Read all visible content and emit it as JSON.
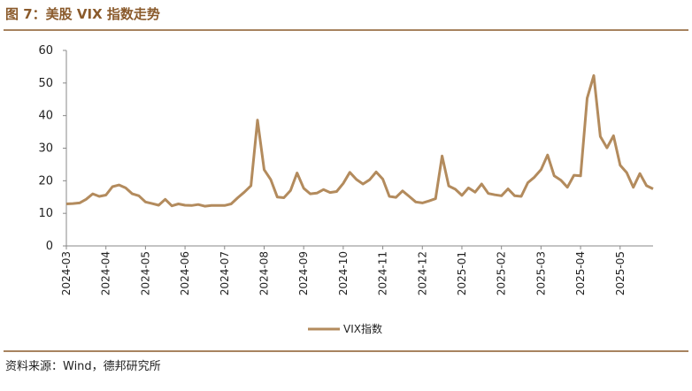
{
  "title": "图 7：美股 VIX 指数走势",
  "source": "资料来源：Wind，德邦研究所",
  "chart_data": {
    "type": "line",
    "categories": [
      "2024-03",
      null,
      null,
      null,
      null,
      null,
      "2024-04",
      null,
      null,
      null,
      null,
      null,
      "2024-05",
      null,
      null,
      null,
      null,
      null,
      "2024-06",
      null,
      null,
      null,
      null,
      null,
      "2024-07",
      null,
      null,
      null,
      null,
      null,
      "2024-08",
      null,
      null,
      null,
      null,
      null,
      "2024-09",
      null,
      null,
      null,
      null,
      null,
      "2024-10",
      null,
      null,
      null,
      null,
      null,
      "2024-11",
      null,
      null,
      null,
      null,
      null,
      "2024-12",
      null,
      null,
      null,
      null,
      null,
      "2025-01",
      null,
      null,
      null,
      null,
      null,
      "2025-02",
      null,
      null,
      null,
      null,
      null,
      "2025-03",
      null,
      null,
      null,
      null,
      null,
      "2025-04",
      null,
      null,
      null,
      null,
      null,
      "2025-05",
      null,
      null,
      null,
      null,
      null
    ],
    "series": [
      {
        "name": "VIX指数",
        "color": "#b38b5d",
        "values": [
          12.9,
          13.0,
          13.2,
          14.3,
          16.0,
          15.2,
          15.6,
          18.2,
          18.7,
          17.8,
          16.0,
          15.4,
          13.5,
          13.0,
          12.5,
          14.3,
          12.3,
          12.9,
          12.5,
          12.4,
          12.7,
          12.2,
          12.4,
          12.4,
          12.4,
          12.9,
          14.8,
          16.5,
          18.5,
          38.6,
          23.4,
          20.4,
          15.0,
          14.8,
          17.0,
          22.4,
          17.7,
          16.0,
          16.2,
          17.3,
          16.4,
          16.7,
          19.2,
          22.6,
          20.4,
          19.0,
          20.3,
          22.7,
          20.5,
          15.2,
          14.9,
          16.9,
          15.2,
          13.5,
          13.2,
          13.8,
          14.5,
          27.6,
          18.4,
          17.4,
          15.5,
          17.8,
          16.5,
          19.0,
          16.1,
          15.7,
          15.4,
          17.5,
          15.4,
          15.2,
          19.4,
          21.1,
          23.4,
          27.9,
          21.5,
          20.2,
          18.0,
          21.7,
          21.5,
          45.3,
          52.3,
          33.6,
          30.1,
          33.8,
          24.8,
          22.5,
          18.0,
          22.2,
          18.5,
          17.5
        ]
      }
    ],
    "ylim": [
      0,
      60
    ],
    "yticks": [
      0,
      10,
      20,
      30,
      40,
      50,
      60
    ],
    "grid": false,
    "legend": "bottom"
  }
}
